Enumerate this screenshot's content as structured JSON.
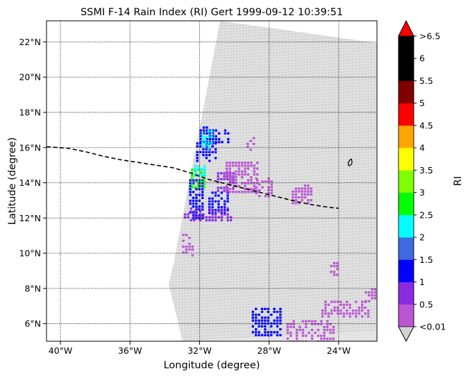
{
  "chart_data": {
    "type": "map-scatter",
    "title": "SSMI F-14 Rain Index (RI) Gert 1999-09-12 10:39:51",
    "xlabel": "Longitude (degree)",
    "ylabel": "Latitude (degree)",
    "xlim": [
      -40.8,
      -21.8
    ],
    "ylim": [
      5.0,
      23.2
    ],
    "x_ticks": [
      {
        "value": -40,
        "label": "40°W"
      },
      {
        "value": -36,
        "label": "36°W"
      },
      {
        "value": -32,
        "label": "32°W"
      },
      {
        "value": -28,
        "label": "28°W"
      },
      {
        "value": -24,
        "label": "24°W"
      }
    ],
    "y_ticks": [
      {
        "value": 6,
        "label": "6°N"
      },
      {
        "value": 8,
        "label": "8°N"
      },
      {
        "value": 10,
        "label": "10°N"
      },
      {
        "value": 12,
        "label": "12°N"
      },
      {
        "value": 14,
        "label": "14°N"
      },
      {
        "value": 16,
        "label": "16°N"
      },
      {
        "value": 18,
        "label": "18°N"
      },
      {
        "value": 20,
        "label": "20°N"
      },
      {
        "value": 22,
        "label": "22°N"
      }
    ],
    "grid": "dotted",
    "swath_color": "#d3d3d3",
    "track": {
      "style": "dashed",
      "color": "#000000",
      "lon": [
        -40.8,
        -39.5,
        -38.5,
        -37.5,
        -36.5,
        -35.5,
        -34.5,
        -33.5,
        -32.5,
        -31.5,
        -30.5,
        -29.5,
        -28.5,
        -27.5,
        -26.5,
        -25.5,
        -24.5,
        -24.0
      ],
      "lat": [
        16.05,
        15.95,
        15.75,
        15.5,
        15.3,
        15.15,
        15.0,
        14.85,
        14.55,
        14.2,
        13.95,
        13.7,
        13.45,
        13.2,
        12.95,
        12.75,
        12.6,
        12.55
      ]
    },
    "colorbar": {
      "label": "RI",
      "tick_labels": [
        "<0.01",
        "0.5",
        "1",
        "1.5",
        "2",
        "2.5",
        "3",
        "3.5",
        "4",
        "4.5",
        "5",
        "5.5",
        "6",
        ">6.5"
      ],
      "colors": [
        "#ba55d3",
        "#8a2be2",
        "#0000ff",
        "#4169e1",
        "#00ffff",
        "#00ff00",
        "#7fff00",
        "#ffff00",
        "#ffa500",
        "#ff0000",
        "#800000",
        "#000000",
        "#000000"
      ],
      "under_color": "#d3d3d3",
      "over_color": "#ff0000"
    },
    "rain_clusters": [
      {
        "lon": [
          -32.6,
          -31.8
        ],
        "lat": [
          12.0,
          14.2
        ],
        "level": 2
      },
      {
        "lon": [
          -32.0,
          -30.3
        ],
        "lat": [
          16.3,
          17.2
        ],
        "level": 2
      },
      {
        "lon": [
          -32.2,
          -31.0
        ],
        "lat": [
          15.2,
          16.3
        ],
        "level": 2
      },
      {
        "lon": [
          -31.5,
          -30.3
        ],
        "lat": [
          12.3,
          13.5
        ],
        "level": 2
      },
      {
        "lon": [
          -32.5,
          -31.7
        ],
        "lat": [
          13.7,
          14.8
        ],
        "level": 5
      },
      {
        "lon": [
          -31.9,
          -31.2
        ],
        "lat": [
          16.0,
          17.0
        ],
        "level": 4
      },
      {
        "lon": [
          -32.3,
          -31.7
        ],
        "lat": [
          14.4,
          15.0
        ],
        "level": 4
      },
      {
        "lon": [
          -31.0,
          -30.0
        ],
        "lat": [
          13.5,
          14.6
        ],
        "level": 1
      },
      {
        "lon": [
          -30.5,
          -28.7
        ],
        "lat": [
          13.5,
          15.2
        ],
        "level": 0
      },
      {
        "lon": [
          -28.8,
          -27.8
        ],
        "lat": [
          13.3,
          14.3
        ],
        "level": 0
      },
      {
        "lon": [
          -26.7,
          -25.6
        ],
        "lat": [
          12.8,
          13.9
        ],
        "level": 0
      },
      {
        "lon": [
          -32.9,
          -30.2
        ],
        "lat": [
          11.8,
          12.6
        ],
        "level": 1
      },
      {
        "lon": [
          -33.0,
          -32.4
        ],
        "lat": [
          9.9,
          11.1
        ],
        "level": 0
      },
      {
        "lon": [
          -29.0,
          -27.3
        ],
        "lat": [
          5.4,
          6.9
        ],
        "level": 2
      },
      {
        "lon": [
          -27.0,
          -24.3
        ],
        "lat": [
          4.9,
          6.2
        ],
        "level": 0
      },
      {
        "lon": [
          -25.0,
          -22.3
        ],
        "lat": [
          6.4,
          7.3
        ],
        "level": 0
      },
      {
        "lon": [
          -22.5,
          -21.9
        ],
        "lat": [
          7.2,
          8.0
        ],
        "level": 0
      },
      {
        "lon": [
          -24.5,
          -24.0
        ],
        "lat": [
          8.8,
          9.5
        ],
        "level": 0
      },
      {
        "lon": [
          -29.3,
          -28.8
        ],
        "lat": [
          15.8,
          16.6
        ],
        "level": 0
      }
    ]
  }
}
